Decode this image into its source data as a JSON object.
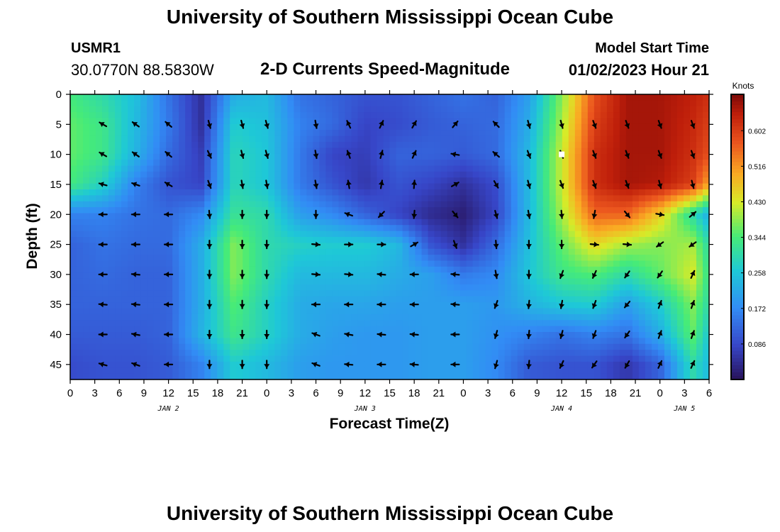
{
  "header": {
    "title": "University of Southern Mississippi Ocean Cube",
    "station_id": "USMR1",
    "station_coords": "30.0770N  88.5830W",
    "plot_title": "2-D Currents Speed-Magnitude",
    "model_label": "Model Start Time",
    "model_time": "01/02/2023 Hour 21"
  },
  "footer": {
    "title": "University of Southern Mississippi Ocean Cube"
  },
  "chart_data": {
    "type": "heatmap",
    "title": "2-D Currents Speed-Magnitude",
    "xlabel": "Forecast Time(Z)",
    "ylabel": "Depth (ft)",
    "colorbar_label": "Knots",
    "colorbar_ticks": [
      "0.602",
      "0.516",
      "0.430",
      "0.344",
      "0.258",
      "0.172",
      "0.086"
    ],
    "colorbar_tick_values": [
      0.602,
      0.516,
      0.43,
      0.344,
      0.258,
      0.172,
      0.086
    ],
    "colorbar_range": [
      0.0,
      0.69
    ],
    "x_ticks": [
      "0",
      "3",
      "6",
      "9",
      "12",
      "15",
      "18",
      "21",
      "0",
      "3",
      "6",
      "9",
      "12",
      "15",
      "18",
      "21",
      "0",
      "3",
      "6",
      "9",
      "12",
      "15",
      "18",
      "21",
      "0",
      "3",
      "6"
    ],
    "x_tick_hours": [
      0,
      3,
      6,
      9,
      12,
      15,
      18,
      21,
      24,
      27,
      30,
      33,
      36,
      39,
      42,
      45,
      48,
      51,
      54,
      57,
      60,
      63,
      66,
      69,
      72,
      75,
      78
    ],
    "x_range_hours": [
      0,
      78
    ],
    "day_labels": [
      {
        "label": "JAN 2",
        "hour": 12
      },
      {
        "label": "JAN 3",
        "hour": 36
      },
      {
        "label": "JAN 4",
        "hour": 60
      },
      {
        "label": "JAN 5",
        "hour": 75
      }
    ],
    "y_ticks": [
      "0",
      "5",
      "10",
      "15",
      "20",
      "25",
      "30",
      "35",
      "40",
      "45"
    ],
    "y_tick_values": [
      0,
      5,
      10,
      15,
      20,
      25,
      30,
      35,
      40,
      45
    ],
    "y_range": [
      0,
      47.5
    ],
    "marker": {
      "hour": 60,
      "depth": 10
    },
    "grid_hours": [
      0,
      4,
      8,
      12,
      16,
      20,
      24,
      28,
      32,
      36,
      40,
      44,
      48,
      52,
      56,
      60,
      64,
      68,
      72,
      76,
      78
    ],
    "grid_depths": [
      0,
      5,
      10,
      15,
      20,
      25,
      30,
      35,
      40,
      45
    ],
    "speed": [
      [
        0.34,
        0.3,
        0.25,
        0.14,
        0.05,
        0.22,
        0.24,
        0.14,
        0.12,
        0.1,
        0.1,
        0.12,
        0.14,
        0.12,
        0.2,
        0.38,
        0.58,
        0.66,
        0.66,
        0.64,
        0.62
      ],
      [
        0.36,
        0.33,
        0.24,
        0.15,
        0.05,
        0.27,
        0.25,
        0.16,
        0.13,
        0.08,
        0.09,
        0.11,
        0.12,
        0.13,
        0.22,
        0.4,
        0.6,
        0.66,
        0.66,
        0.63,
        0.6
      ],
      [
        0.36,
        0.33,
        0.23,
        0.13,
        0.07,
        0.29,
        0.26,
        0.15,
        0.08,
        0.07,
        0.12,
        0.12,
        0.11,
        0.13,
        0.24,
        0.42,
        0.62,
        0.66,
        0.66,
        0.62,
        0.58
      ],
      [
        0.34,
        0.28,
        0.16,
        0.1,
        0.08,
        0.29,
        0.26,
        0.15,
        0.1,
        0.06,
        0.1,
        0.08,
        0.05,
        0.09,
        0.24,
        0.42,
        0.62,
        0.66,
        0.65,
        0.6,
        0.5
      ],
      [
        0.16,
        0.16,
        0.14,
        0.13,
        0.17,
        0.32,
        0.3,
        0.2,
        0.17,
        0.12,
        0.08,
        0.04,
        0.02,
        0.08,
        0.24,
        0.4,
        0.56,
        0.56,
        0.46,
        0.3,
        0.22
      ],
      [
        0.12,
        0.14,
        0.13,
        0.13,
        0.22,
        0.38,
        0.3,
        0.28,
        0.27,
        0.27,
        0.24,
        0.1,
        0.05,
        0.13,
        0.25,
        0.36,
        0.45,
        0.4,
        0.38,
        0.4,
        0.3
      ],
      [
        0.12,
        0.13,
        0.12,
        0.12,
        0.22,
        0.38,
        0.3,
        0.24,
        0.24,
        0.24,
        0.22,
        0.2,
        0.15,
        0.17,
        0.26,
        0.33,
        0.35,
        0.3,
        0.36,
        0.43,
        0.32
      ],
      [
        0.12,
        0.12,
        0.12,
        0.12,
        0.22,
        0.35,
        0.28,
        0.22,
        0.21,
        0.21,
        0.2,
        0.2,
        0.2,
        0.19,
        0.23,
        0.26,
        0.27,
        0.2,
        0.27,
        0.38,
        0.3
      ],
      [
        0.11,
        0.11,
        0.11,
        0.12,
        0.23,
        0.33,
        0.28,
        0.22,
        0.2,
        0.19,
        0.19,
        0.2,
        0.2,
        0.18,
        0.16,
        0.14,
        0.16,
        0.14,
        0.22,
        0.36,
        0.26
      ],
      [
        0.09,
        0.1,
        0.1,
        0.11,
        0.16,
        0.27,
        0.24,
        0.2,
        0.19,
        0.19,
        0.19,
        0.2,
        0.2,
        0.17,
        0.11,
        0.1,
        0.1,
        0.06,
        0.12,
        0.3,
        0.24
      ]
    ],
    "arrows": {
      "hours": [
        4,
        8,
        12,
        17,
        21,
        24,
        30,
        34,
        38,
        42,
        47,
        52,
        56,
        60,
        64,
        68,
        72,
        76
      ],
      "depths": [
        5,
        10,
        15,
        20,
        25,
        30,
        35,
        40,
        45
      ],
      "directions_deg": [
        [
          300,
          305,
          310,
          165,
          165,
          165,
          170,
          335,
          25,
          30,
          40,
          315,
          165,
          165,
          160,
          160,
          160,
          160
        ],
        [
          300,
          305,
          310,
          155,
          165,
          165,
          170,
          340,
          15,
          25,
          280,
          310,
          160,
          160,
          160,
          160,
          160,
          160
        ],
        [
          285,
          290,
          300,
          160,
          170,
          170,
          170,
          350,
          10,
          5,
          60,
          150,
          165,
          160,
          160,
          160,
          165,
          165
        ],
        [
          270,
          270,
          270,
          175,
          180,
          180,
          180,
          290,
          225,
          185,
          140,
          165,
          170,
          175,
          190,
          140,
          100,
          50
        ],
        [
          270,
          270,
          270,
          180,
          180,
          180,
          95,
          90,
          90,
          60,
          160,
          175,
          180,
          180,
          95,
          95,
          235,
          235
        ],
        [
          270,
          275,
          270,
          180,
          180,
          180,
          95,
          95,
          275,
          270,
          275,
          170,
          180,
          200,
          205,
          215,
          215,
          25
        ],
        [
          275,
          275,
          270,
          180,
          180,
          180,
          270,
          270,
          270,
          270,
          275,
          200,
          185,
          190,
          200,
          220,
          20,
          20
        ],
        [
          270,
          280,
          270,
          180,
          180,
          180,
          290,
          280,
          275,
          275,
          270,
          195,
          185,
          195,
          200,
          215,
          20,
          20
        ],
        [
          285,
          290,
          270,
          180,
          180,
          180,
          290,
          275,
          270,
          275,
          270,
          195,
          185,
          205,
          215,
          210,
          25,
          25
        ]
      ]
    }
  }
}
